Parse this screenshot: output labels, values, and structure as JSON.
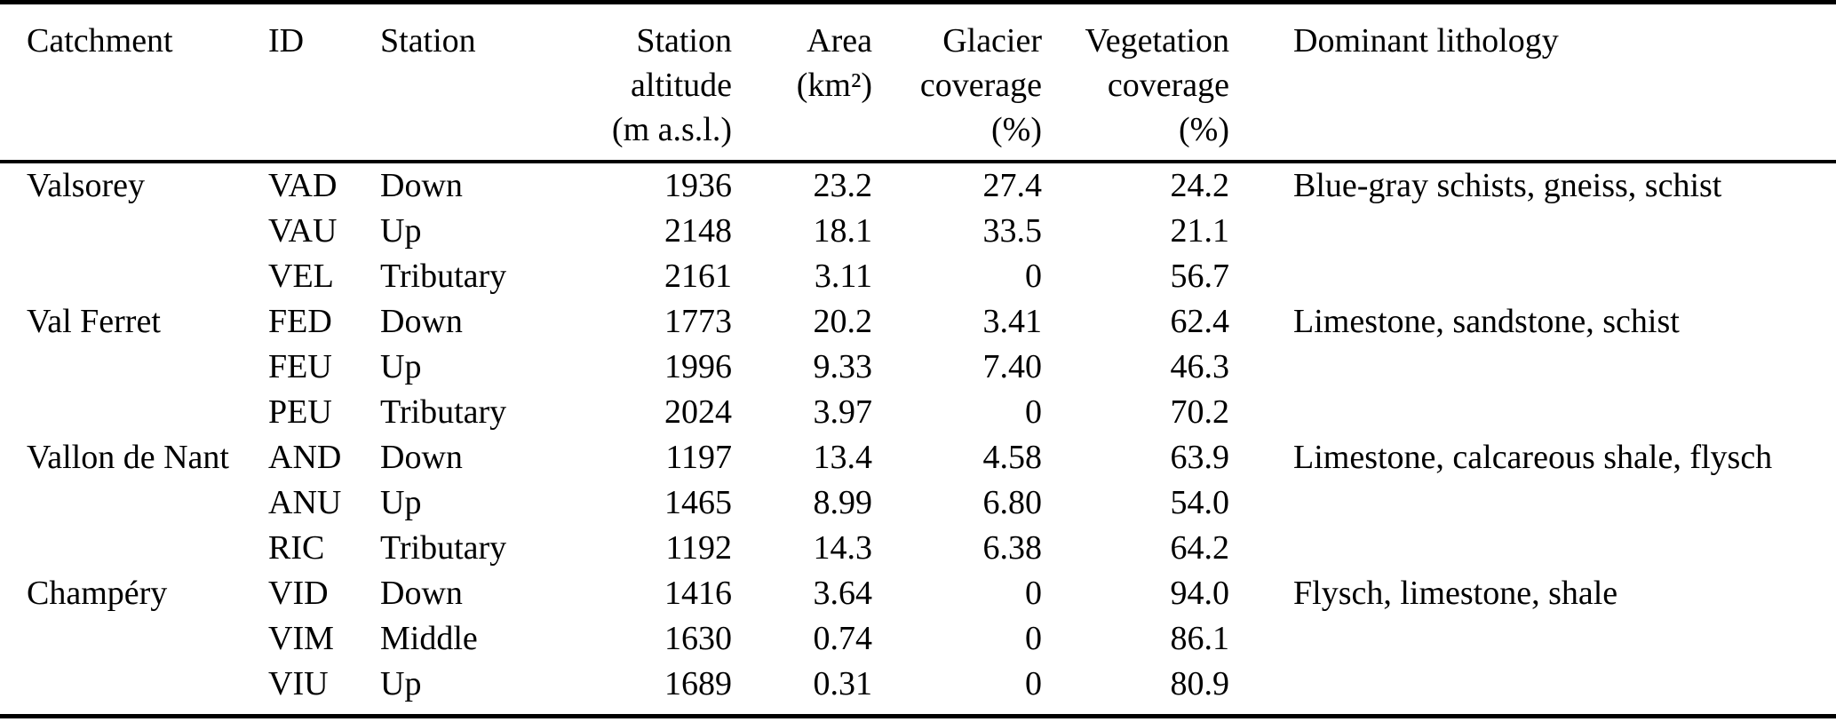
{
  "meta": {
    "background_color": "#ffffff",
    "text_color": "#000000",
    "rule_color": "#000000"
  },
  "table": {
    "headers": [
      {
        "id": "catchment",
        "align": "left",
        "lines": [
          "Catchment"
        ]
      },
      {
        "id": "station_id",
        "align": "left",
        "lines": [
          "ID"
        ]
      },
      {
        "id": "station",
        "align": "left",
        "lines": [
          "Station"
        ]
      },
      {
        "id": "station_altitude",
        "align": "right",
        "lines": [
          "Station",
          "altitude",
          "(m a.s.l.)"
        ]
      },
      {
        "id": "area",
        "align": "right",
        "lines": [
          "Area",
          "(km²)"
        ]
      },
      {
        "id": "glacier_coverage",
        "align": "right",
        "lines": [
          "Glacier",
          "coverage",
          "(%)"
        ]
      },
      {
        "id": "vegetation_coverage",
        "align": "right",
        "lines": [
          "Vegetation",
          "coverage",
          "(%)"
        ]
      },
      {
        "id": "dominant_lithology",
        "align": "left",
        "lines": [
          "Dominant lithology"
        ]
      }
    ],
    "rows": [
      {
        "catchment": "Valsorey",
        "station_id": "VAD",
        "station": "Down",
        "station_altitude": "1936",
        "area": "23.2",
        "glacier_coverage": "27.4",
        "vegetation_coverage": "24.2",
        "dominant_lithology": "Blue-gray schists, gneiss, schist"
      },
      {
        "catchment": "",
        "station_id": "VAU",
        "station": "Up",
        "station_altitude": "2148",
        "area": "18.1",
        "glacier_coverage": "33.5",
        "vegetation_coverage": "21.1",
        "dominant_lithology": ""
      },
      {
        "catchment": "",
        "station_id": "VEL",
        "station": "Tributary",
        "station_altitude": "2161",
        "area": "3.11",
        "glacier_coverage": "0",
        "vegetation_coverage": "56.7",
        "dominant_lithology": ""
      },
      {
        "catchment": "Val Ferret",
        "station_id": "FED",
        "station": "Down",
        "station_altitude": "1773",
        "area": "20.2",
        "glacier_coverage": "3.41",
        "vegetation_coverage": "62.4",
        "dominant_lithology": "Limestone, sandstone, schist"
      },
      {
        "catchment": "",
        "station_id": "FEU",
        "station": "Up",
        "station_altitude": "1996",
        "area": "9.33",
        "glacier_coverage": "7.40",
        "vegetation_coverage": "46.3",
        "dominant_lithology": ""
      },
      {
        "catchment": "",
        "station_id": "PEU",
        "station": "Tributary",
        "station_altitude": "2024",
        "area": "3.97",
        "glacier_coverage": "0",
        "vegetation_coverage": "70.2",
        "dominant_lithology": ""
      },
      {
        "catchment": "Vallon de Nant",
        "station_id": "AND",
        "station": "Down",
        "station_altitude": "1197",
        "area": "13.4",
        "glacier_coverage": "4.58",
        "vegetation_coverage": "63.9",
        "dominant_lithology": "Limestone, calcareous shale, flysch"
      },
      {
        "catchment": "",
        "station_id": "ANU",
        "station": "Up",
        "station_altitude": "1465",
        "area": "8.99",
        "glacier_coverage": "6.80",
        "vegetation_coverage": "54.0",
        "dominant_lithology": ""
      },
      {
        "catchment": "",
        "station_id": "RIC",
        "station": "Tributary",
        "station_altitude": "1192",
        "area": "14.3",
        "glacier_coverage": "6.38",
        "vegetation_coverage": "64.2",
        "dominant_lithology": ""
      },
      {
        "catchment": "Champéry",
        "station_id": "VID",
        "station": "Down",
        "station_altitude": "1416",
        "area": "3.64",
        "glacier_coverage": "0",
        "vegetation_coverage": "94.0",
        "dominant_lithology": "Flysch, limestone, shale"
      },
      {
        "catchment": "",
        "station_id": "VIM",
        "station": "Middle",
        "station_altitude": "1630",
        "area": "0.74",
        "glacier_coverage": "0",
        "vegetation_coverage": "86.1",
        "dominant_lithology": ""
      },
      {
        "catchment": "",
        "station_id": "VIU",
        "station": "Up",
        "station_altitude": "1689",
        "area": "0.31",
        "glacier_coverage": "0",
        "vegetation_coverage": "80.9",
        "dominant_lithology": ""
      }
    ]
  }
}
